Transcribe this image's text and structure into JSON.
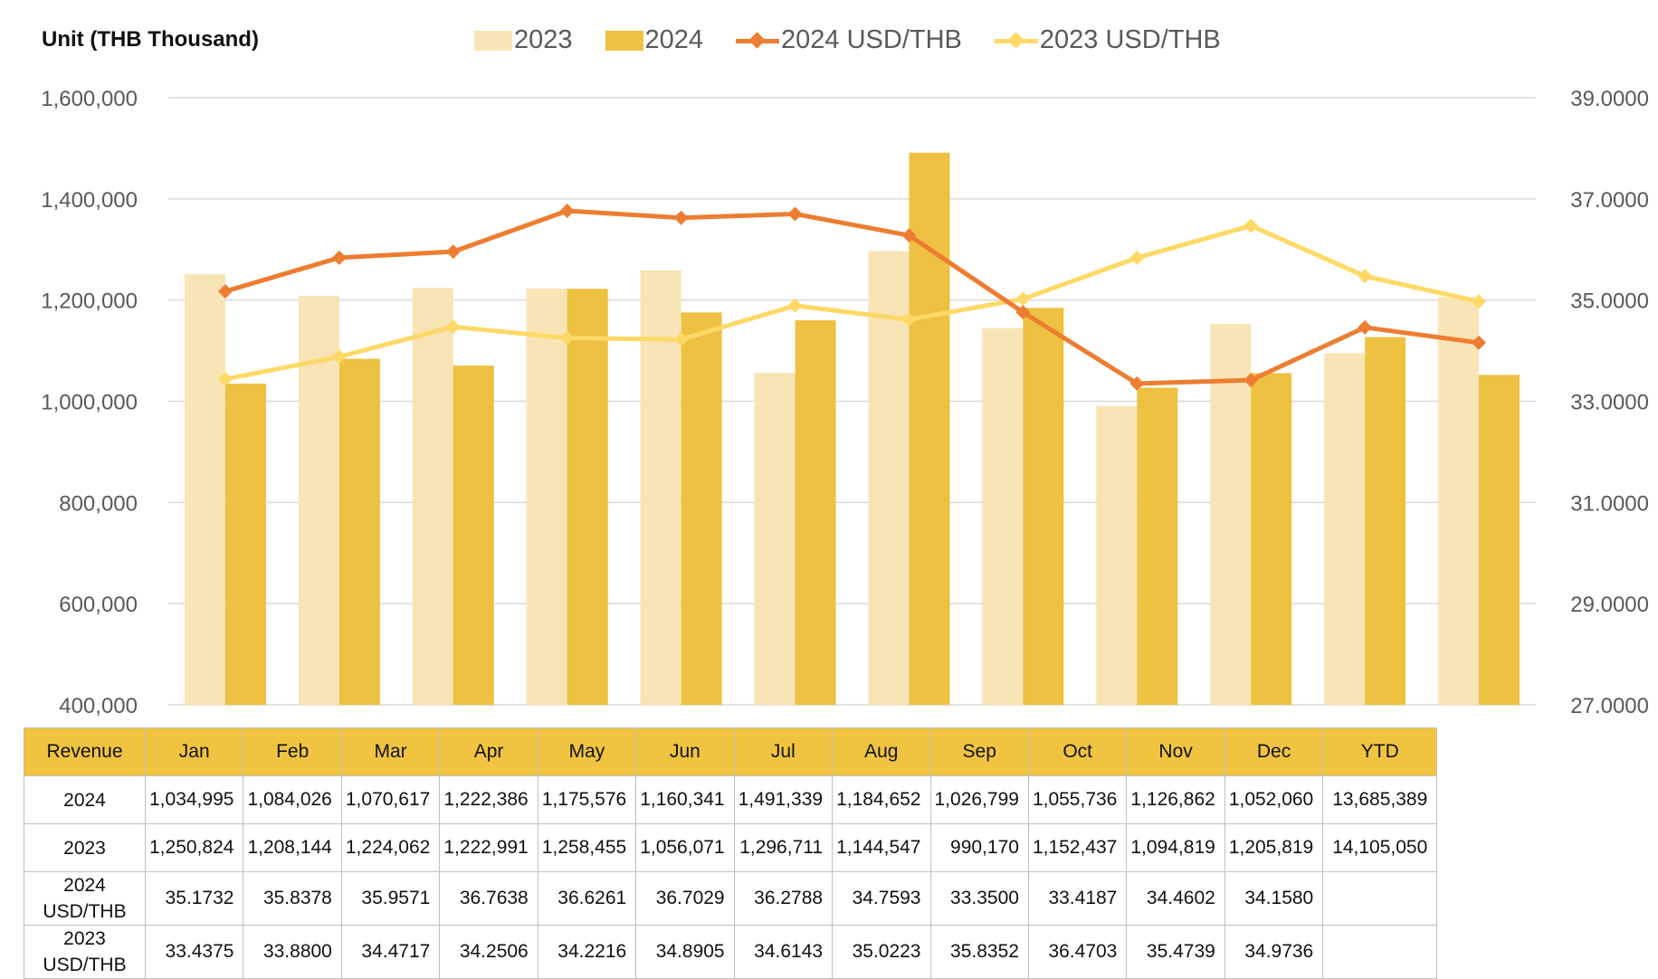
{
  "unit_label": "Unit (THB  Thousand)",
  "colors": {
    "bar_2023": "#f8e4b4",
    "bar_2024": "#eec142",
    "line_2024_usdthb": "#ed7d31",
    "line_2023_usdthb": "#ffd966",
    "header_fill": "#f0c440",
    "grid": "#d9d9d9",
    "axis_text": "#595959"
  },
  "legend": [
    {
      "label": "2023",
      "kind": "bar",
      "color": "#f8e4b4"
    },
    {
      "label": "2024",
      "kind": "bar",
      "color": "#eec142"
    },
    {
      "label": "2024 USD/THB",
      "kind": "line",
      "color": "#ed7d31"
    },
    {
      "label": "2023 USD/THB",
      "kind": "line",
      "color": "#ffd966"
    }
  ],
  "chart_data": {
    "type": "bar",
    "categories": [
      "Jan",
      "Feb",
      "Mar",
      "Apr",
      "May",
      "Jun",
      "Jul",
      "Aug",
      "Sep",
      "Oct",
      "Nov",
      "Dec"
    ],
    "series": [
      {
        "name": "2023",
        "kind": "bar",
        "axis": "left",
        "values": [
          1250824,
          1208144,
          1224062,
          1222991,
          1258455,
          1056071,
          1296711,
          1144547,
          990170,
          1152437,
          1094819,
          1205819
        ]
      },
      {
        "name": "2024",
        "kind": "bar",
        "axis": "left",
        "values": [
          1034995,
          1084026,
          1070617,
          1222386,
          1175576,
          1160341,
          1491339,
          1184652,
          1026799,
          1055736,
          1126862,
          1052060
        ]
      },
      {
        "name": "2024 USD/THB",
        "kind": "line",
        "axis": "right",
        "values": [
          35.1732,
          35.8378,
          35.9571,
          36.7638,
          36.6261,
          36.7029,
          36.2788,
          34.7593,
          33.35,
          33.4187,
          34.4602,
          34.158
        ]
      },
      {
        "name": "2023 USD/THB",
        "kind": "line",
        "axis": "right",
        "values": [
          33.4375,
          33.88,
          34.4717,
          34.2506,
          34.2216,
          34.8905,
          34.6143,
          35.0223,
          35.8352,
          36.4703,
          35.4739,
          34.9736
        ]
      }
    ],
    "left_axis": {
      "min": 400000,
      "max": 1600000,
      "ticks": [
        "400,000",
        "600,000",
        "800,000",
        "1,000,000",
        "1,200,000",
        "1,400,000",
        "1,600,000"
      ]
    },
    "right_axis": {
      "min": 27,
      "max": 39,
      "ticks": [
        "27.0000",
        "29.0000",
        "31.0000",
        "33.0000",
        "35.0000",
        "37.0000",
        "39.0000"
      ]
    },
    "grid": true,
    "legend_position": "top"
  },
  "table": {
    "header": [
      "Revenue",
      "Jan",
      "Feb",
      "Mar",
      "Apr",
      "May",
      "Jun",
      "Jul",
      "Aug",
      "Sep",
      "Oct",
      "Nov",
      "Dec",
      "YTD"
    ],
    "rows": [
      {
        "label": [
          "2024"
        ],
        "cells": [
          "1,034,995",
          "1,084,026",
          "1,070,617",
          "1,222,386",
          "1,175,576",
          "1,160,341",
          "1,491,339",
          "1,184,652",
          "1,026,799",
          "1,055,736",
          "1,126,862",
          "1,052,060"
        ],
        "ytd": "13,685,389"
      },
      {
        "label": [
          "2023"
        ],
        "cells": [
          "1,250,824",
          "1,208,144",
          "1,224,062",
          "1,222,991",
          "1,258,455",
          "1,056,071",
          "1,296,711",
          "1,144,547",
          "990,170",
          "1,152,437",
          "1,094,819",
          "1,205,819"
        ],
        "ytd": "14,105,050"
      },
      {
        "label": [
          "2024",
          "USD/THB"
        ],
        "cells": [
          "35.1732",
          "35.8378",
          "35.9571",
          "36.7638",
          "36.6261",
          "36.7029",
          "36.2788",
          "34.7593",
          "33.3500",
          "33.4187",
          "34.4602",
          "34.1580"
        ],
        "ytd": ""
      },
      {
        "label": [
          "2023",
          "USD/THB"
        ],
        "cells": [
          "33.4375",
          "33.8800",
          "34.4717",
          "34.2506",
          "34.2216",
          "34.8905",
          "34.6143",
          "35.0223",
          "35.8352",
          "36.4703",
          "35.4739",
          "34.9736"
        ],
        "ytd": ""
      }
    ]
  }
}
